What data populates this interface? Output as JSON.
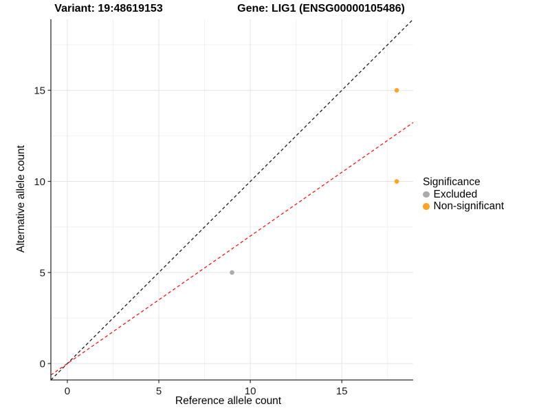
{
  "titles": {
    "variant": "Variant: 19:48619153",
    "gene": "Gene: LIG1 (ENSG00000105486)"
  },
  "chart_data": {
    "type": "scatter",
    "xlabel": "Reference allele count",
    "ylabel": "Alternative allele count",
    "xlim": [
      -0.9,
      18.9
    ],
    "ylim": [
      -0.9,
      18.9
    ],
    "x_ticks": [
      0,
      5,
      10,
      15
    ],
    "y_ticks": [
      0,
      5,
      10,
      15
    ],
    "x_minor_ticks": [
      2.5,
      7.5,
      12.5,
      17.5
    ],
    "y_minor_ticks": [
      2.5,
      7.5,
      12.5,
      17.5
    ],
    "grid": true,
    "series": [
      {
        "name": "Excluded",
        "color": "#ababab",
        "points": [
          {
            "x": 9,
            "y": 5
          }
        ]
      },
      {
        "name": "Non-significant",
        "color": "#ffa41e",
        "points": [
          {
            "x": 18,
            "y": 10
          },
          {
            "x": 18,
            "y": 15
          }
        ]
      }
    ],
    "lines": [
      {
        "name": "identity-line",
        "style": "dashed",
        "color": "#1a1a1a",
        "slope": 1,
        "intercept": 0
      },
      {
        "name": "expected-ratio-line",
        "style": "dashed",
        "color": "#ff1414",
        "slope": 0.7,
        "intercept": 0
      }
    ],
    "legend": {
      "title": "Significance",
      "position": "right",
      "items": [
        {
          "label": "Excluded",
          "color": "#ababab"
        },
        {
          "label": "Non-significant",
          "color": "#ffa41e"
        }
      ]
    }
  },
  "colors": {
    "axis_line": "#2b2b2b",
    "grid_major": "#e4e4e4",
    "grid_minor": "#f1f1f1",
    "tick_label": "#1a1a1a"
  }
}
